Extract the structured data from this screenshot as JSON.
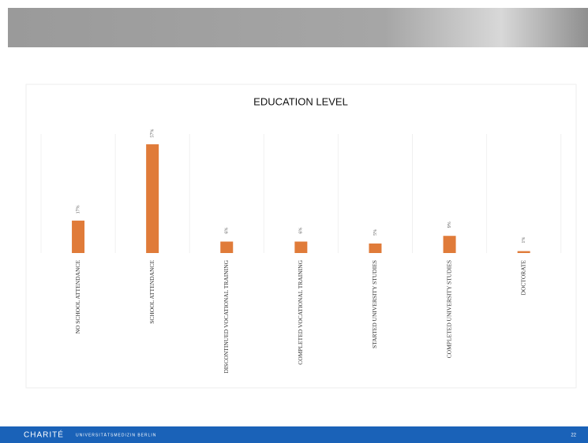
{
  "chart_data": {
    "type": "bar",
    "title": "EDUCATION LEVEL",
    "categories": [
      "NO SCHOOL ATTENDANCE",
      "SCHOOL ATTENDANCE",
      "DISCONTINUED VOCATIONAL TRAINING",
      "COMPLETED VOCATIONAL TRAINING",
      "STARTED UNIVERSITY STUDIES",
      "COMPLETED UNIVERSITY STUDIES",
      "DOCTORATE"
    ],
    "values": [
      17,
      57,
      6,
      6,
      5,
      9,
      1
    ],
    "value_labels": [
      "17%",
      "57%",
      "6%",
      "6%",
      "5%",
      "9%",
      "1%"
    ],
    "color": "#e07b39"
  },
  "footer": {
    "logo": "CHARITÉ",
    "institution": "UNIVERSITÄTSMEDIZIN BERLIN",
    "page_number": "22"
  }
}
